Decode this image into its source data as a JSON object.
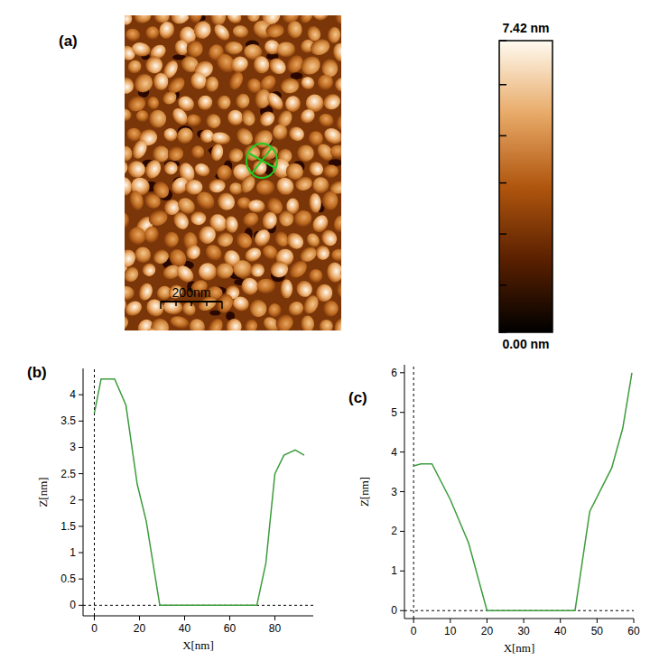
{
  "chart_data": [
    {
      "type": "image",
      "panel": "(a)",
      "colorbar_range": [
        0,
        7.42
      ],
      "colorbar_ticks": [
        {
          "value": 7.42,
          "label": "7.42 nm"
        },
        {
          "value": 0,
          "label": "0.00 nm"
        }
      ],
      "colorbar_minor_ticks": [
        1.2,
        2.5,
        3.8,
        5.0,
        6.3
      ],
      "extent": [
        0,
        706
      ],
      "scale_bar": {
        "value": 200,
        "label": "200nm"
      }
    },
    {
      "type": "line",
      "panel": "(b)",
      "x_label": "X[nm]",
      "y_label": "Z[nm]",
      "x": [
        0,
        3,
        9,
        14,
        19,
        23,
        29,
        72,
        76,
        80,
        84,
        89,
        93
      ],
      "series": [
        {
          "color": "#3c9c3c",
          "values": [
            3.65,
            4.3,
            4.3,
            3.8,
            2.3,
            1.6,
            0,
            0,
            0.8,
            2.5,
            2.85,
            2.95,
            2.85
          ]
        }
      ],
      "xlim": [
        -5,
        97
      ],
      "ylim": [
        -0.2,
        4.5
      ],
      "xticks": [
        0,
        20,
        40,
        60,
        80
      ],
      "yticks": [
        0,
        0.5,
        1,
        1.5,
        2,
        2.5,
        3,
        3.5,
        4
      ]
    },
    {
      "type": "line",
      "panel": "(c)",
      "x_label": "X[nm]",
      "y_label": "Z[nm]",
      "x": [
        0,
        2,
        5,
        10,
        15,
        20,
        44,
        48,
        54,
        57,
        59.5
      ],
      "series": [
        {
          "color": "#3c9c3c",
          "values": [
            3.65,
            3.7,
            3.7,
            2.8,
            1.7,
            0,
            0,
            2.5,
            3.6,
            4.6,
            6.0
          ]
        }
      ],
      "xlim": [
        -2.5,
        60
      ],
      "ylim": [
        -0.2,
        6.2
      ],
      "xticks": [
        0,
        10,
        20,
        30,
        40,
        50,
        60
      ],
      "yticks": [
        0,
        1,
        2,
        3,
        4,
        5,
        6
      ]
    }
  ]
}
